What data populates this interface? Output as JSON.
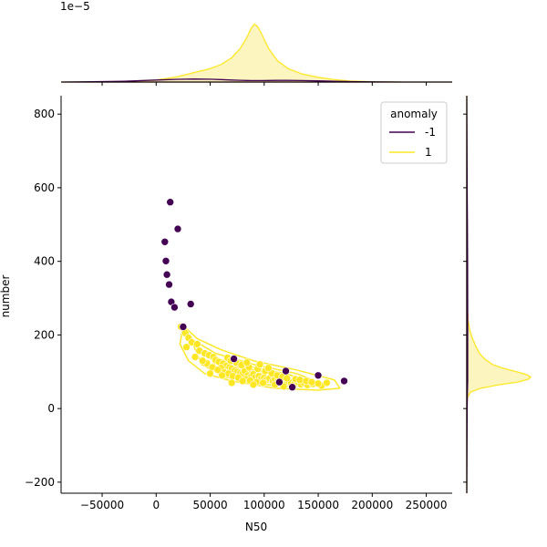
{
  "chart_data": {
    "type": "scatter",
    "title": "",
    "xlabel": "N50",
    "ylabel": "number",
    "x_offset_label": "1e−5",
    "xlim": [
      -88000,
      274000
    ],
    "ylim": [
      -230,
      850
    ],
    "xticks": [
      -50000,
      0,
      50000,
      100000,
      150000,
      200000,
      250000
    ],
    "xtick_labels": [
      "−50000",
      "0",
      "50000",
      "100000",
      "150000",
      "200000",
      "250000"
    ],
    "yticks": [
      -200,
      0,
      200,
      400,
      600,
      800
    ],
    "ytick_labels": [
      "−200",
      "0",
      "200",
      "400",
      "600",
      "800"
    ],
    "grid": false,
    "legend": {
      "title": "anomaly",
      "position": "top-right"
    },
    "colors": {
      "-1": "#440154",
      "1": "#fde725",
      "fill_1": "#fdf5c0"
    },
    "series": [
      {
        "name": "-1",
        "points": [
          [
            13000,
            561
          ],
          [
            20000,
            488
          ],
          [
            8000,
            453
          ],
          [
            9000,
            401
          ],
          [
            10000,
            364
          ],
          [
            12000,
            337
          ],
          [
            14000,
            290
          ],
          [
            17000,
            275
          ],
          [
            32000,
            284
          ],
          [
            25000,
            222
          ],
          [
            72000,
            135
          ],
          [
            120000,
            102
          ],
          [
            150000,
            90
          ],
          [
            174000,
            75
          ],
          [
            114000,
            72
          ],
          [
            126000,
            58
          ]
        ]
      },
      {
        "name": "1",
        "points": [
          [
            23000,
            222
          ],
          [
            27000,
            205
          ],
          [
            30000,
            192
          ],
          [
            33000,
            180
          ],
          [
            28000,
            167
          ],
          [
            38000,
            175
          ],
          [
            40000,
            157
          ],
          [
            45000,
            150
          ],
          [
            49000,
            145
          ],
          [
            53000,
            140
          ],
          [
            55000,
            132
          ],
          [
            58000,
            127
          ],
          [
            47000,
            123
          ],
          [
            62000,
            122
          ],
          [
            65000,
            116
          ],
          [
            68000,
            112
          ],
          [
            70000,
            108
          ],
          [
            73000,
            104
          ],
          [
            75000,
            100
          ],
          [
            78000,
            97
          ],
          [
            80000,
            95
          ],
          [
            82000,
            102
          ],
          [
            85000,
            90
          ],
          [
            88000,
            87
          ],
          [
            90000,
            93
          ],
          [
            92000,
            85
          ],
          [
            95000,
            88
          ],
          [
            97000,
            80
          ],
          [
            100000,
            83
          ],
          [
            102000,
            78
          ],
          [
            105000,
            82
          ],
          [
            108000,
            75
          ],
          [
            110000,
            79
          ],
          [
            113000,
            73
          ],
          [
            115000,
            76
          ],
          [
            118000,
            70
          ],
          [
            122000,
            74
          ],
          [
            125000,
            70
          ],
          [
            128000,
            68
          ],
          [
            131000,
            72
          ],
          [
            134000,
            66
          ],
          [
            137000,
            70
          ],
          [
            140000,
            64
          ],
          [
            145000,
            67
          ],
          [
            153000,
            62
          ],
          [
            60000,
            110
          ],
          [
            63000,
            98
          ],
          [
            67000,
            95
          ],
          [
            71000,
            88
          ],
          [
            76000,
            84
          ],
          [
            83000,
            80
          ],
          [
            87000,
            76
          ],
          [
            93000,
            72
          ],
          [
            99000,
            70
          ],
          [
            52000,
            112
          ],
          [
            57000,
            105
          ],
          [
            43000,
            130
          ],
          [
            36000,
            140
          ],
          [
            50000,
            95
          ],
          [
            66000,
            138
          ],
          [
            74000,
            125
          ],
          [
            79000,
            118
          ],
          [
            86000,
            112
          ],
          [
            94000,
            108
          ],
          [
            101000,
            102
          ],
          [
            107000,
            96
          ],
          [
            112000,
            90
          ],
          [
            117000,
            86
          ],
          [
            121000,
            82
          ],
          [
            129000,
            80
          ],
          [
            133000,
            78
          ],
          [
            139000,
            75
          ],
          [
            144000,
            72
          ],
          [
            150000,
            68
          ],
          [
            158000,
            70
          ],
          [
            70000,
            70
          ],
          [
            80000,
            75
          ],
          [
            90000,
            65
          ],
          [
            110000,
            65
          ],
          [
            118000,
            60
          ],
          [
            61000,
            90
          ],
          [
            69000,
            130
          ],
          [
            84000,
            125
          ],
          [
            96000,
            120
          ],
          [
            104000,
            110
          ]
        ]
      }
    ],
    "kde_contours_1": [
      [
        [
          25000,
          225
        ],
        [
          38000,
          190
        ],
        [
          60000,
          160
        ],
        [
          90000,
          130
        ],
        [
          130000,
          105
        ],
        [
          165000,
          78
        ],
        [
          170000,
          55
        ],
        [
          150000,
          50
        ],
        [
          110000,
          55
        ],
        [
          70000,
          75
        ],
        [
          45000,
          95
        ],
        [
          30000,
          130
        ],
        [
          22000,
          175
        ],
        [
          25000,
          225
        ]
      ],
      [
        [
          32000,
          190
        ],
        [
          55000,
          150
        ],
        [
          90000,
          120
        ],
        [
          130000,
          95
        ],
        [
          150000,
          72
        ],
        [
          135000,
          60
        ],
        [
          100000,
          65
        ],
        [
          65000,
          85
        ],
        [
          42000,
          120
        ],
        [
          32000,
          190
        ]
      ],
      [
        [
          50000,
          140
        ],
        [
          85000,
          115
        ],
        [
          120000,
          95
        ],
        [
          138000,
          78
        ],
        [
          118000,
          68
        ],
        [
          85000,
          78
        ],
        [
          58000,
          100
        ],
        [
          50000,
          140
        ]
      ],
      [
        [
          70000,
          115
        ],
        [
          100000,
          100
        ],
        [
          120000,
          85
        ],
        [
          100000,
          78
        ],
        [
          78000,
          92
        ],
        [
          70000,
          115
        ]
      ],
      [
        [
          85000,
          103
        ],
        [
          102000,
          93
        ],
        [
          92000,
          85
        ],
        [
          85000,
          103
        ]
      ]
    ],
    "marginal_x": {
      "x": [
        -88000,
        -60000,
        -30000,
        0,
        20000,
        35000,
        50000,
        60000,
        70000,
        78000,
        84000,
        88000,
        91000,
        94000,
        98000,
        104000,
        112000,
        122000,
        135000,
        150000,
        165000,
        180000,
        200000,
        230000,
        274000
      ],
      "density_1": [
        0,
        0,
        0.01,
        0.03,
        0.08,
        0.14,
        0.2,
        0.26,
        0.36,
        0.5,
        0.66,
        0.8,
        0.86,
        0.82,
        0.7,
        0.5,
        0.32,
        0.2,
        0.12,
        0.07,
        0.035,
        0.015,
        0.005,
        0,
        0
      ],
      "density_neg1": [
        0,
        0.004,
        0.012,
        0.03,
        0.04,
        0.044,
        0.042,
        0.036,
        0.03,
        0.026,
        0.023,
        0.022,
        0.021,
        0.021,
        0.022,
        0.023,
        0.024,
        0.024,
        0.022,
        0.018,
        0.012,
        0.007,
        0.003,
        0,
        0
      ]
    },
    "marginal_y": {
      "y": [
        -230,
        0,
        30,
        45,
        55,
        65,
        72,
        80,
        86,
        92,
        100,
        110,
        120,
        135,
        150,
        170,
        190,
        210,
        240,
        300,
        400,
        500,
        600,
        850
      ],
      "density_1": [
        0,
        0,
        0.01,
        0.06,
        0.22,
        0.52,
        0.8,
        0.97,
        1.0,
        0.94,
        0.78,
        0.56,
        0.4,
        0.28,
        0.2,
        0.14,
        0.09,
        0.05,
        0.02,
        0.005,
        0,
        0,
        0,
        0
      ],
      "density_neg1": [
        0,
        0.005,
        0.008,
        0.01,
        0.012,
        0.013,
        0.014,
        0.014,
        0.014,
        0.014,
        0.014,
        0.014,
        0.014,
        0.014,
        0.014,
        0.014,
        0.014,
        0.014,
        0.014,
        0.014,
        0.013,
        0.01,
        0.006,
        0
      ]
    }
  }
}
